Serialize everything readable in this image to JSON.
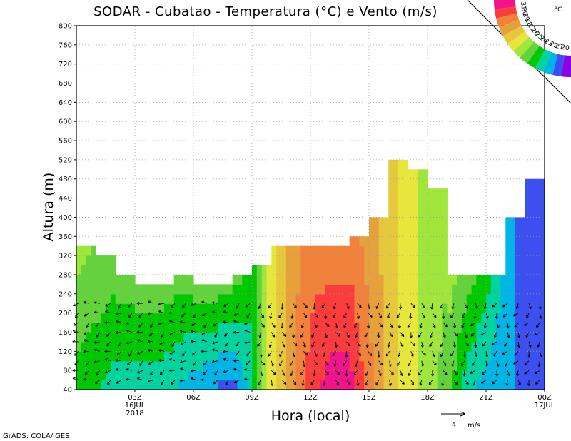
{
  "chart_data": {
    "type": "heatmap",
    "title": "SODAR - Cubatao - Temperatura (°C) e Vento (m/s)",
    "xlabel": "Hora (local)",
    "ylabel": "Altura (m)",
    "ylim": [
      40,
      800
    ],
    "yticks": [
      40,
      80,
      120,
      160,
      200,
      240,
      280,
      320,
      360,
      400,
      440,
      480,
      520,
      560,
      600,
      640,
      680,
      720,
      760,
      800
    ],
    "xlim": [
      0,
      24
    ],
    "xticks": [
      {
        "hour": 3,
        "label": "03Z",
        "sub1": "16JUL",
        "sub2": "2018"
      },
      {
        "hour": 6,
        "label": "06Z",
        "sub1": "",
        "sub2": ""
      },
      {
        "hour": 9,
        "label": "09Z",
        "sub1": "",
        "sub2": ""
      },
      {
        "hour": 12,
        "label": "12Z",
        "sub1": "",
        "sub2": ""
      },
      {
        "hour": 15,
        "label": "15Z",
        "sub1": "",
        "sub2": ""
      },
      {
        "hour": 18,
        "label": "18Z",
        "sub1": "",
        "sub2": ""
      },
      {
        "hour": 21,
        "label": "21Z",
        "sub1": "",
        "sub2": ""
      },
      {
        "hour": 24,
        "label": "00Z",
        "sub1": "17JUL",
        "sub2": ""
      }
    ],
    "data_top_height_m": [
      {
        "hour": 0,
        "top": 340
      },
      {
        "hour": 1,
        "top": 320
      },
      {
        "hour": 2,
        "top": 280
      },
      {
        "hour": 3,
        "top": 260
      },
      {
        "hour": 4,
        "top": 260
      },
      {
        "hour": 5,
        "top": 280
      },
      {
        "hour": 6,
        "top": 260
      },
      {
        "hour": 7,
        "top": 260
      },
      {
        "hour": 8,
        "top": 280
      },
      {
        "hour": 9,
        "top": 300
      },
      {
        "hour": 10,
        "top": 340
      },
      {
        "hour": 11,
        "top": 340
      },
      {
        "hour": 12,
        "top": 340
      },
      {
        "hour": 13,
        "top": 340
      },
      {
        "hour": 14,
        "top": 360
      },
      {
        "hour": 15,
        "top": 400
      },
      {
        "hour": 16,
        "top": 520
      },
      {
        "hour": 17,
        "top": 500
      },
      {
        "hour": 18,
        "top": 460
      },
      {
        "hour": 19,
        "top": 280
      },
      {
        "hour": 20,
        "top": 280
      },
      {
        "hour": 21,
        "top": 280
      },
      {
        "hour": 22,
        "top": 400
      },
      {
        "hour": 23,
        "top": 480
      }
    ],
    "temperature_by_hour": [
      {
        "hour": 0,
        "surface": 23,
        "aloft": 25
      },
      {
        "hour": 2,
        "surface": 22,
        "aloft": 24
      },
      {
        "hour": 4,
        "surface": 22,
        "aloft": 24
      },
      {
        "hour": 6,
        "surface": 21,
        "aloft": 24
      },
      {
        "hour": 8,
        "surface": 20,
        "aloft": 24
      },
      {
        "hour": 9,
        "surface": 22,
        "aloft": 23
      },
      {
        "hour": 10,
        "surface": 26,
        "aloft": 26
      },
      {
        "hour": 11,
        "surface": 28,
        "aloft": 28
      },
      {
        "hour": 12,
        "surface": 30,
        "aloft": 29
      },
      {
        "hour": 13,
        "surface": 31,
        "aloft": 29
      },
      {
        "hour": 14,
        "surface": 31,
        "aloft": 29
      },
      {
        "hour": 15,
        "surface": 29,
        "aloft": 28
      },
      {
        "hour": 16,
        "surface": 27,
        "aloft": 27
      },
      {
        "hour": 17,
        "surface": 26,
        "aloft": 26
      },
      {
        "hour": 18,
        "surface": 25,
        "aloft": 25
      },
      {
        "hour": 19,
        "surface": 24,
        "aloft": 25
      },
      {
        "hour": 20,
        "surface": 22,
        "aloft": 24
      },
      {
        "hour": 21,
        "surface": 21,
        "aloft": 23
      },
      {
        "hour": 22,
        "surface": 21,
        "aloft": 21
      },
      {
        "hour": 23,
        "surface": 20,
        "aloft": 20
      }
    ],
    "colorbar": {
      "unit": "°C",
      "levels": [
        "31",
        "30",
        "29",
        "28",
        "27",
        "26",
        "25",
        "24",
        "23",
        "22",
        "21",
        "20"
      ],
      "colors": [
        "#f0148c",
        "#fa3c3c",
        "#f0823c",
        "#e6a03c",
        "#e6c83c",
        "#e6e63c",
        "#a0e63c",
        "#64d23c",
        "#00c800",
        "#00d2a0",
        "#00b4e6",
        "#3c50f0",
        "#8c00e6"
      ]
    },
    "wind_reference": {
      "value": "4",
      "unit": "m/s"
    },
    "credit": "GrADS: COLA/IGES"
  }
}
